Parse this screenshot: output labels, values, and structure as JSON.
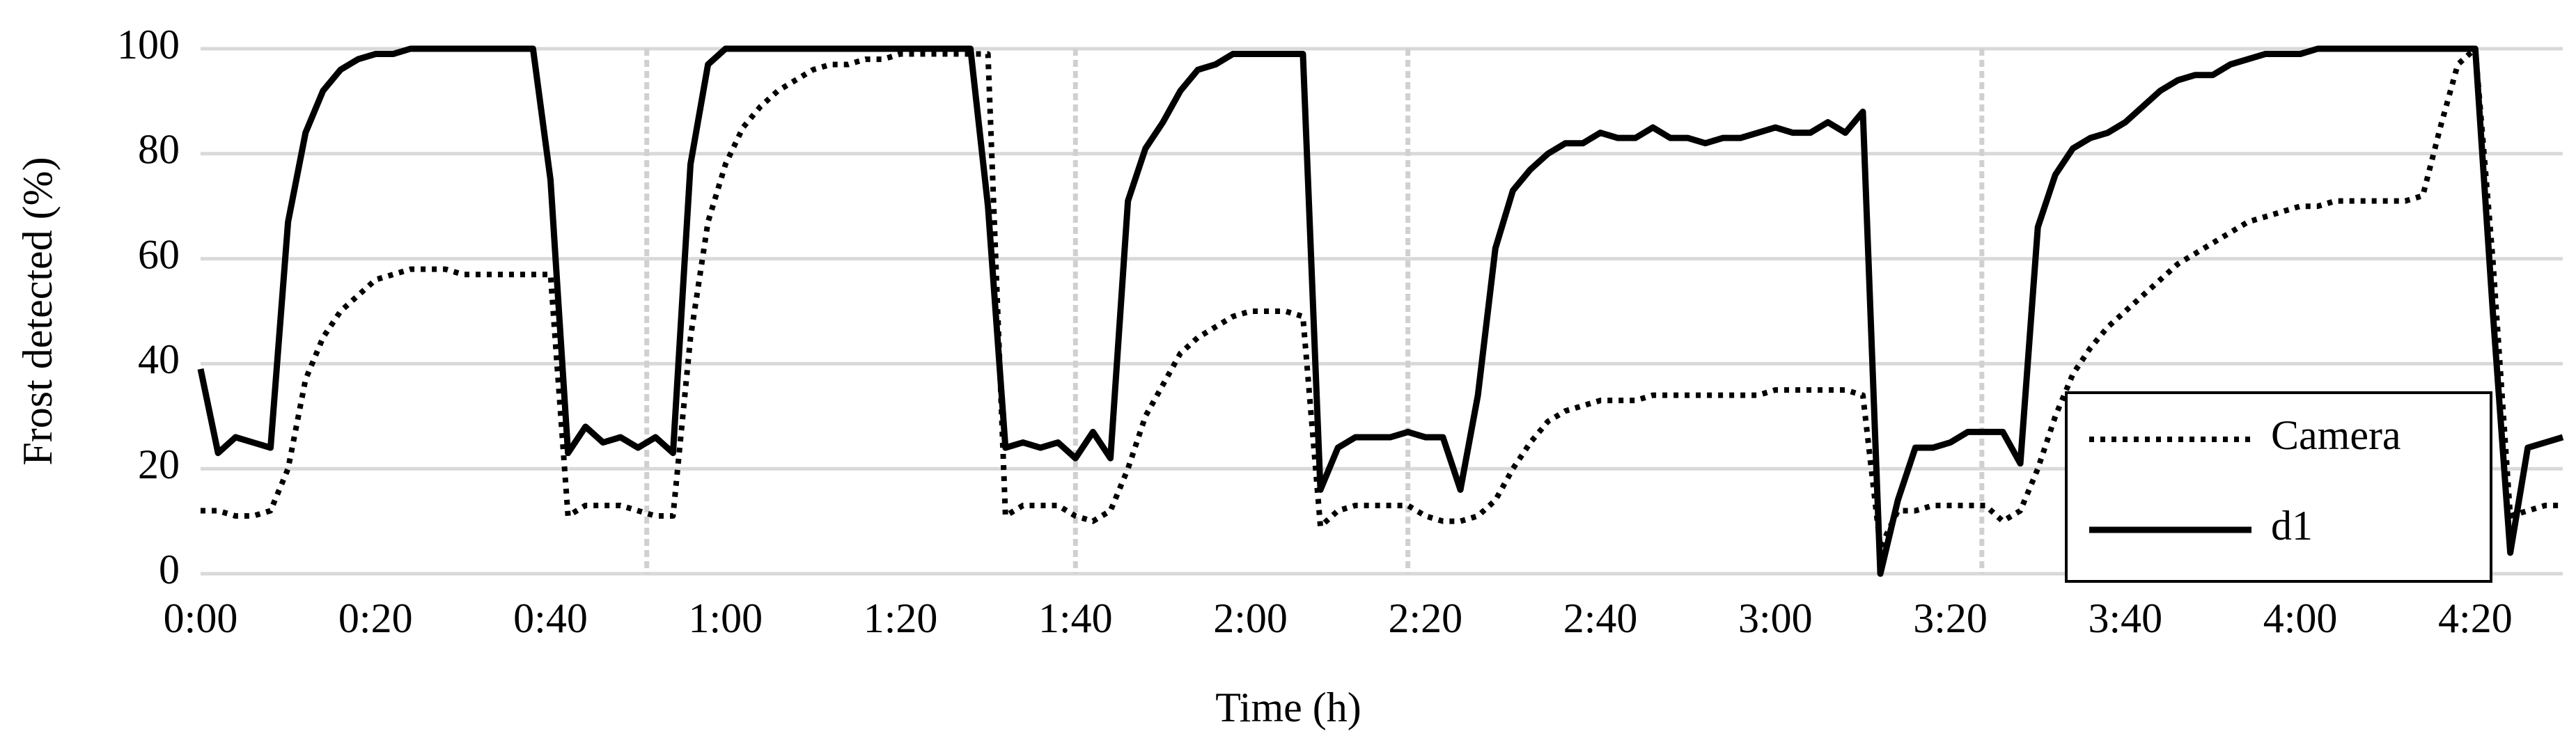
{
  "chart_data": {
    "type": "line",
    "xlabel": "Time (h)",
    "ylabel": "Frost detected (%)",
    "x": [
      0,
      2,
      4,
      6,
      8,
      10,
      12,
      14,
      16,
      18,
      20,
      22,
      24,
      26,
      28,
      30,
      32,
      34,
      36,
      38,
      40,
      42,
      44,
      46,
      48,
      50,
      52,
      54,
      56,
      58,
      60,
      62,
      64,
      66,
      68,
      70,
      72,
      74,
      76,
      78,
      80,
      82,
      84,
      86,
      88,
      90,
      92,
      94,
      96,
      98,
      100,
      102,
      104,
      106,
      108,
      110,
      112,
      114,
      116,
      118,
      120,
      122,
      124,
      126,
      128,
      130,
      132,
      134,
      136,
      138,
      140,
      142,
      144,
      146,
      148,
      150,
      152,
      154,
      156,
      158,
      160,
      162,
      164,
      166,
      168,
      170,
      172,
      174,
      176,
      178,
      180,
      182,
      184,
      186,
      188,
      190,
      192,
      194,
      196,
      198,
      200,
      202,
      204,
      206,
      208,
      210,
      212,
      214,
      216,
      218,
      220,
      222,
      224,
      226,
      228,
      230,
      232,
      234,
      236,
      238,
      240,
      242,
      244,
      246,
      248,
      250,
      252,
      254,
      256,
      258,
      260,
      262,
      264,
      266,
      268,
      270
    ],
    "series": [
      {
        "name": "Camera",
        "color": "#000000",
        "style": "dotted",
        "values": [
          12,
          12,
          11,
          11,
          12,
          20,
          37,
          45,
          50,
          53,
          56,
          57,
          58,
          58,
          58,
          57,
          57,
          57,
          57,
          57,
          57,
          11,
          13,
          13,
          13,
          12,
          11,
          11,
          45,
          67,
          78,
          85,
          89,
          92,
          94,
          96,
          97,
          97,
          98,
          98,
          99,
          99,
          99,
          99,
          99,
          99,
          11,
          13,
          13,
          13,
          11,
          10,
          12,
          20,
          30,
          36,
          42,
          45,
          47,
          49,
          50,
          50,
          50,
          49,
          9,
          12,
          13,
          13,
          13,
          13,
          11,
          10,
          10,
          11,
          14,
          20,
          25,
          29,
          31,
          32,
          33,
          33,
          33,
          34,
          34,
          34,
          34,
          34,
          34,
          34,
          35,
          35,
          35,
          35,
          35,
          34,
          5,
          12,
          12,
          13,
          13,
          13,
          13,
          10,
          12,
          20,
          30,
          38,
          43,
          47,
          50,
          53,
          56,
          59,
          61,
          63,
          65,
          67,
          68,
          69,
          70,
          70,
          71,
          71,
          71,
          71,
          71,
          72,
          85,
          97,
          100,
          60,
          11,
          12,
          13,
          13
        ]
      },
      {
        "name": "d1",
        "color": "#000000",
        "style": "solid",
        "values": [
          39,
          23,
          26,
          25,
          24,
          67,
          84,
          92,
          96,
          98,
          99,
          99,
          100,
          100,
          100,
          100,
          100,
          100,
          100,
          100,
          75,
          23,
          28,
          25,
          26,
          24,
          26,
          23,
          78,
          97,
          100,
          100,
          100,
          100,
          100,
          100,
          100,
          100,
          100,
          100,
          100,
          100,
          100,
          100,
          100,
          70,
          24,
          25,
          24,
          25,
          22,
          27,
          22,
          71,
          81,
          86,
          92,
          96,
          97,
          99,
          99,
          99,
          99,
          99,
          16,
          24,
          26,
          26,
          26,
          27,
          26,
          26,
          16,
          34,
          62,
          73,
          77,
          80,
          82,
          82,
          84,
          83,
          83,
          85,
          83,
          83,
          82,
          83,
          83,
          84,
          85,
          84,
          84,
          86,
          84,
          88,
          0,
          14,
          24,
          24,
          25,
          27,
          27,
          27,
          21,
          66,
          76,
          81,
          83,
          84,
          86,
          89,
          92,
          94,
          95,
          95,
          97,
          98,
          99,
          99,
          99,
          100,
          100,
          100,
          100,
          100,
          100,
          100,
          100,
          100,
          100,
          50,
          4,
          24,
          25,
          26
        ]
      }
    ],
    "xlim": [
      0,
      270
    ],
    "xticks": [
      {
        "value": 0,
        "label": "0:00"
      },
      {
        "value": 20,
        "label": "0:20"
      },
      {
        "value": 40,
        "label": "0:40"
      },
      {
        "value": 60,
        "label": "1:00"
      },
      {
        "value": 80,
        "label": "1:20"
      },
      {
        "value": 100,
        "label": "1:40"
      },
      {
        "value": 120,
        "label": "2:00"
      },
      {
        "value": 140,
        "label": "2:20"
      },
      {
        "value": 160,
        "label": "2:40"
      },
      {
        "value": 180,
        "label": "3:00"
      },
      {
        "value": 200,
        "label": "3:20"
      },
      {
        "value": 220,
        "label": "3:40"
      },
      {
        "value": 240,
        "label": "4:00"
      },
      {
        "value": 260,
        "label": "4:20"
      }
    ],
    "ylim": [
      0,
      100
    ],
    "yticks": [
      0,
      20,
      40,
      60,
      80,
      100
    ],
    "grid": true,
    "legend": "lower right",
    "vlines": [
      51,
      100,
      138,
      203.6
    ]
  }
}
